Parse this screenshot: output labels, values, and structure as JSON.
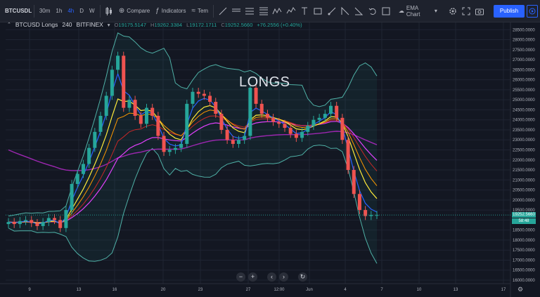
{
  "toolbar": {
    "symbol": "BTCUSDLON",
    "intervals": [
      "30m",
      "1h",
      "4h",
      "D",
      "W"
    ],
    "active_interval": "4h",
    "compare_label": "Compare",
    "indicators_label": "Indicators",
    "templates_label": "Tem",
    "layout_name": "EMA Chart",
    "publish_label": "Publish"
  },
  "legend": {
    "symbol": "BTCUSD Longs",
    "interval": "240",
    "exchange": "BITFINEX",
    "open_key": "O",
    "open": "19175.5147",
    "high_key": "H",
    "high": "19262.3384",
    "low_key": "L",
    "low": "19172.1711",
    "close_key": "C",
    "close": "19252.5660",
    "change": "+76.2556 (+0.40%)"
  },
  "watermark": "LONGS",
  "price_axis": {
    "labels": [
      "29000.0000",
      "28500.0000",
      "28000.0000",
      "27500.0000",
      "27000.0000",
      "26500.0000",
      "26000.0000",
      "25500.0000",
      "25000.0000",
      "24500.0000",
      "24000.0000",
      "23500.0000",
      "23000.0000",
      "22500.0000",
      "22000.0000",
      "21500.0000",
      "21000.0000",
      "20500.0000",
      "20000.0000",
      "19500.0000",
      "19000.0000",
      "18500.0000",
      "18000.0000",
      "17500.0000",
      "17000.0000",
      "16500.0000",
      "16000.0000"
    ],
    "last_price": "19252.5660",
    "countdown": "58:48"
  },
  "time_axis": {
    "labels": [
      "9",
      "13",
      "16",
      "20",
      "23",
      "27",
      "12:00",
      "Jun",
      "4",
      "7",
      "10",
      "13",
      "17"
    ]
  },
  "colors": {
    "up": "#26a69a",
    "down": "#ef5350",
    "bb_band": "#4fb0a6",
    "ema_fast": "#2962ff",
    "ema_mid": "#ffeb3b",
    "ema_slow": "#ff9800",
    "ema_red": "#c62828",
    "ema_magenta": "#e040fb",
    "ema_long": "#9c27b0"
  },
  "chart_data": {
    "type": "line",
    "description_units": "price USD",
    "price_range": [
      16000,
      29000
    ],
    "candles_close": [
      18900,
      18800,
      18950,
      19000,
      18850,
      18700,
      18900,
      19100,
      19000,
      18600,
      19500,
      20800,
      21300,
      21800,
      22600,
      23400,
      24200,
      25200,
      26500,
      27200,
      24600,
      25000,
      24200,
      23800,
      24600,
      24200,
      23200,
      22400,
      22500,
      22600,
      22800,
      24800,
      25400,
      25300,
      25200,
      24900,
      24300,
      23500,
      23000,
      22800,
      23000,
      23200,
      25600,
      24800,
      24300,
      24100,
      23900,
      23800,
      23600,
      23300,
      23100,
      23400,
      23700,
      24000,
      24100,
      24300,
      24700,
      24100,
      23000,
      21500,
      20300,
      19500,
      19200,
      19250,
      19250
    ]
  }
}
